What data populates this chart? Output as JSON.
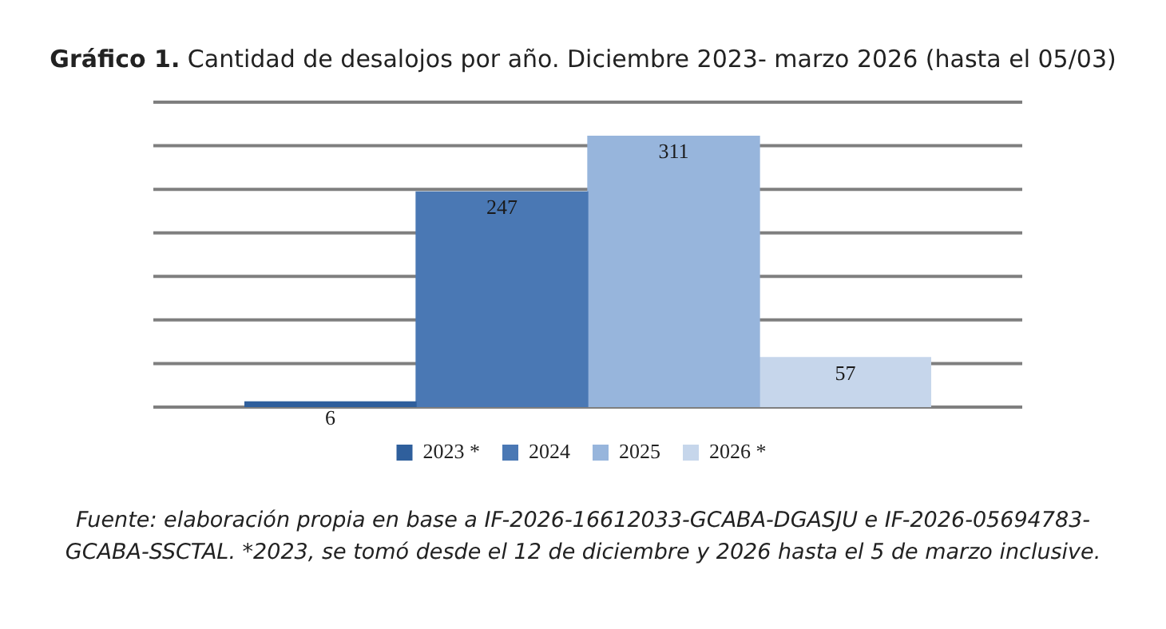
{
  "chart_data": {
    "type": "bar",
    "title": "Gráfico 1. Cantidad de desalojos por año. Diciembre 2023- marzo 2026 (hasta el 05/03)",
    "categories": [
      null,
      null,
      null,
      null
    ],
    "stacked": true,
    "series": [
      {
        "name": "2023 *",
        "color": "#2f5f9c",
        "values": [
          6,
          null,
          null,
          null
        ]
      },
      {
        "name": "2024",
        "color": "#4a78b4",
        "values": [
          null,
          247,
          null,
          null
        ]
      },
      {
        "name": "2025",
        "color": "#97b5dc",
        "values": [
          null,
          null,
          311,
          null
        ]
      },
      {
        "name": "2026 *",
        "color": "#c6d6eb",
        "values": [
          null,
          null,
          null,
          57
        ]
      }
    ],
    "ylim": [
      0,
      350
    ],
    "yticks": [
      0,
      50,
      100,
      150,
      200,
      250,
      300,
      350
    ],
    "tick_labels": false,
    "grid": "y",
    "legend": "bottom",
    "data_labels": true,
    "annotations": [
      "Fuente: elaboración propia en base a IF-2026-16612033-GCABA-DGASJU e IF-2026-05694783-GCABA-SSCTAL. *2023, se tomó desde el 12 de diciembre y 2026 hasta el 5 de marzo inclusive."
    ]
  }
}
